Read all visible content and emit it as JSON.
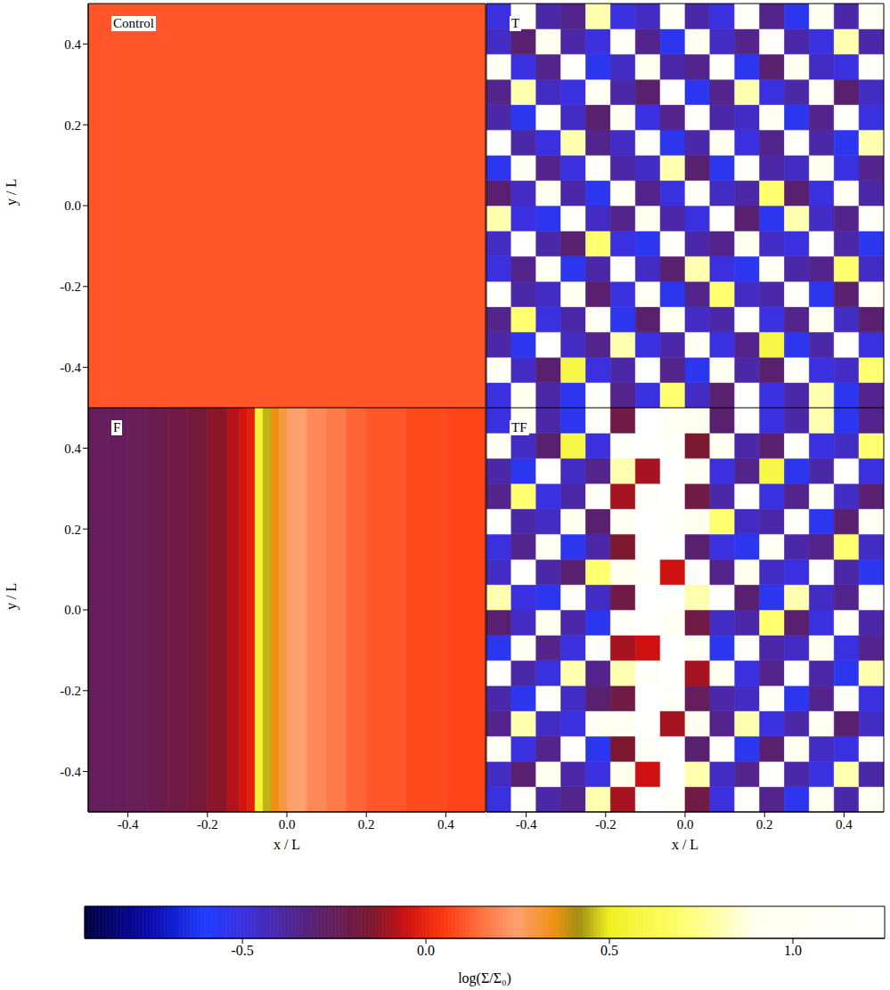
{
  "chart_data": [
    {
      "type": "heatmap",
      "title": "Control",
      "ylabel": "y / L",
      "xlim": [
        -0.5,
        0.5
      ],
      "ylim": [
        -0.5,
        0.5
      ],
      "xticks": [
        -0.4,
        -0.2,
        {
          "value": 0,
          "label": "0.0"
        },
        0.2,
        0.4
      ],
      "yticks": [
        -0.4,
        -0.2,
        {
          "value": 0,
          "label": "0.0"
        },
        0.2,
        0.4
      ],
      "tick_labels": "y",
      "x_edges": [
        -0.5,
        0.5
      ],
      "y_edges": [
        -0.5,
        0.5
      ],
      "cells": [
        [
          0.1
        ]
      ]
    },
    {
      "type": "heatmap",
      "title": "T",
      "xlim": [
        -0.5,
        0.5
      ],
      "ylim": [
        -0.5,
        0.5
      ],
      "xticks": [
        -0.4,
        -0.2,
        {
          "value": 0,
          "label": "0.0"
        },
        0.2,
        0.4
      ],
      "yticks": [
        -0.4,
        -0.2,
        {
          "value": 0,
          "label": "0.0"
        },
        0.2,
        0.4
      ],
      "tick_labels": false,
      "x_edges": [
        -0.5,
        -0.4375,
        -0.375,
        -0.3125,
        -0.25,
        -0.1875,
        -0.125,
        -0.0625,
        0,
        0.0625,
        0.125,
        0.1875,
        0.25,
        0.3125,
        0.375,
        0.4375,
        0.5
      ],
      "y_edges": [
        -0.5,
        -0.4375,
        -0.375,
        -0.3125,
        -0.25,
        -0.1875,
        -0.125,
        -0.0625,
        0,
        0.0625,
        0.125,
        0.1875,
        0.25,
        0.3125,
        0.375,
        0.4375,
        0.5
      ],
      "cells": [
        [
          -0.5,
          0.9,
          -0.4,
          -0.55,
          1.1,
          -0.35,
          -0.5,
          0.7,
          -0.45,
          -0.3,
          1.2,
          -0.5,
          -0.4,
          0.8,
          -0.55,
          -0.35
        ],
        [
          1.0,
          -0.45,
          -0.3,
          0.6,
          -0.5,
          -0.4,
          1.2,
          -0.35,
          -0.55,
          0.9,
          -0.4,
          -0.3,
          1.1,
          -0.5,
          -0.45,
          0.7
        ],
        [
          -0.4,
          -0.55,
          1.2,
          -0.45,
          -0.35,
          0.8,
          -0.5,
          -0.4,
          1.0,
          -0.5,
          -0.35,
          0.6,
          -0.55,
          -0.4,
          1.2,
          -0.5
        ],
        [
          -0.35,
          0.7,
          -0.5,
          -0.4,
          1.1,
          -0.55,
          -0.3,
          0.9,
          -0.45,
          -0.4,
          1.2,
          -0.5,
          -0.35,
          0.9,
          -0.45,
          -0.3
        ],
        [
          1.1,
          -0.4,
          -0.45,
          0.9,
          -0.3,
          -0.5,
          1.0,
          -0.55,
          -0.35,
          0.7,
          -0.45,
          -0.4,
          1.1,
          -0.55,
          -0.3,
          1.0
        ],
        [
          -0.5,
          -0.35,
          1.0,
          -0.55,
          -0.4,
          1.2,
          -0.45,
          -0.3,
          0.8,
          -0.5,
          -0.55,
          1.0,
          -0.4,
          -0.35,
          0.7,
          -0.45
        ],
        [
          -0.45,
          1.2,
          -0.4,
          -0.3,
          0.7,
          -0.5,
          -0.55,
          1.1,
          -0.4,
          -0.35,
          0.9,
          -0.45,
          -0.5,
          1.2,
          -0.4,
          -0.55
        ],
        [
          0.8,
          -0.5,
          -0.55,
          1.1,
          -0.45,
          -0.35,
          0.9,
          -0.4,
          -0.5,
          1.2,
          -0.3,
          -0.55,
          0.8,
          -0.45,
          -0.35,
          1.1
        ],
        [
          -0.3,
          -0.45,
          0.9,
          -0.4,
          -0.55,
          1.0,
          -0.35,
          -0.5,
          1.1,
          -0.45,
          -0.4,
          0.7,
          -0.3,
          -0.5,
          1.0,
          -0.4
        ],
        [
          -0.55,
          1.0,
          -0.35,
          -0.5,
          1.2,
          -0.4,
          -0.45,
          0.8,
          -0.3,
          -0.55,
          1.1,
          -0.4,
          -0.45,
          0.9,
          -0.5,
          -0.35
        ],
        [
          1.2,
          -0.4,
          -0.5,
          0.8,
          -0.35,
          -0.45,
          1.1,
          -0.55,
          -0.4,
          0.9,
          -0.5,
          -0.35,
          1.2,
          -0.4,
          -0.55,
          0.8
        ],
        [
          -0.4,
          -0.55,
          1.1,
          -0.45,
          -0.3,
          0.9,
          -0.5,
          -0.35,
          1.2,
          -0.4,
          -0.45,
          1.0,
          -0.55,
          -0.35,
          1.1,
          -0.5
        ],
        [
          -0.35,
          0.8,
          -0.45,
          -0.5,
          1.0,
          -0.4,
          -0.3,
          1.2,
          -0.55,
          -0.35,
          0.8,
          -0.5,
          -0.4,
          1.0,
          -0.3,
          -0.45
        ],
        [
          1.0,
          -0.5,
          -0.35,
          1.2,
          -0.55,
          -0.45,
          0.9,
          -0.4,
          -0.35,
          1.1,
          -0.55,
          -0.3,
          0.9,
          -0.45,
          -0.5,
          1.2
        ],
        [
          -0.45,
          -0.3,
          0.9,
          -0.4,
          -0.5,
          1.1,
          -0.35,
          -0.55,
          1.0,
          -0.45,
          -0.35,
          1.2,
          -0.4,
          -0.5,
          0.8,
          -0.4
        ],
        [
          -0.5,
          1.1,
          -0.4,
          -0.35,
          0.8,
          -0.5,
          -0.45,
          1.0,
          -0.4,
          -0.5,
          1.1,
          -0.35,
          -0.55,
          0.9,
          -0.4,
          1.0
        ]
      ]
    },
    {
      "type": "heatmap",
      "title": "F",
      "xlabel": "x / L",
      "ylabel": "y / L",
      "xlim": [
        -0.5,
        0.5
      ],
      "ylim": [
        -0.5,
        0.5
      ],
      "xticks": [
        -0.4,
        -0.2,
        {
          "value": 0,
          "label": "0.0"
        },
        0.2,
        0.4
      ],
      "yticks": [
        -0.4,
        -0.2,
        {
          "value": 0,
          "label": "0.0"
        },
        0.2,
        0.4
      ],
      "tick_labels": true,
      "x_edges": [
        -0.5,
        -0.45,
        -0.4,
        -0.35,
        -0.3,
        -0.25,
        -0.2,
        -0.15,
        -0.12,
        -0.1,
        -0.08,
        -0.06,
        -0.04,
        -0.02,
        0,
        0.05,
        0.1,
        0.15,
        0.2,
        0.3,
        0.4,
        0.5
      ],
      "y_edges": [
        -0.5,
        0.5
      ],
      "cells": [
        [
          -0.25,
          -0.25,
          -0.24,
          -0.22,
          -0.2,
          -0.17,
          -0.13,
          -0.08,
          -0.04,
          -0.01,
          0.55,
          0.45,
          0.35,
          0.3,
          0.25,
          0.2,
          0.17,
          0.13,
          0.1,
          0.08,
          0.07
        ]
      ]
    },
    {
      "type": "heatmap",
      "title": "TF",
      "xlabel": "x / L",
      "xlim": [
        -0.5,
        0.5
      ],
      "ylim": [
        -0.5,
        0.5
      ],
      "xticks": [
        -0.4,
        -0.2,
        {
          "value": 0,
          "label": "0.0"
        },
        0.2,
        0.4
      ],
      "yticks": [
        -0.4,
        -0.2,
        {
          "value": 0,
          "label": "0.0"
        },
        0.2,
        0.4
      ],
      "tick_labels": "x",
      "x_edges": [
        -0.5,
        -0.4375,
        -0.375,
        -0.3125,
        -0.25,
        -0.1875,
        -0.125,
        -0.0625,
        0,
        0.0625,
        0.125,
        0.1875,
        0.25,
        0.3125,
        0.375,
        0.4375,
        0.5
      ],
      "y_edges": [
        -0.5,
        -0.4375,
        -0.375,
        -0.3125,
        -0.25,
        -0.1875,
        -0.125,
        -0.0625,
        0,
        0.0625,
        0.125,
        0.1875,
        0.25,
        0.3125,
        0.375,
        0.4375,
        0.5
      ],
      "cells": [
        [
          -0.5,
          1.1,
          -0.4,
          -0.35,
          0.8,
          -0.1,
          1.2,
          1.1,
          -0.2,
          -0.5,
          1.1,
          -0.35,
          -0.55,
          0.9,
          -0.4,
          1.0
        ],
        [
          -0.45,
          -0.3,
          0.9,
          -0.4,
          -0.5,
          0.9,
          -0.05,
          1.2,
          0.8,
          -0.45,
          -0.35,
          1.2,
          -0.4,
          -0.5,
          0.8,
          -0.4
        ],
        [
          1.0,
          -0.5,
          -0.35,
          1.2,
          -0.55,
          -0.15,
          1.1,
          1.3,
          -0.3,
          1.1,
          -0.55,
          -0.3,
          0.9,
          -0.45,
          -0.5,
          1.2
        ],
        [
          -0.35,
          0.8,
          -0.45,
          -0.5,
          1.0,
          1.0,
          1.2,
          -0.1,
          0.9,
          -0.35,
          0.8,
          -0.5,
          -0.4,
          1.0,
          -0.3,
          -0.45
        ],
        [
          -0.4,
          -0.55,
          1.1,
          -0.45,
          -0.3,
          -0.2,
          1.3,
          1.1,
          -0.25,
          -0.4,
          -0.45,
          1.0,
          -0.55,
          -0.35,
          1.1,
          -0.5
        ],
        [
          1.2,
          -0.4,
          -0.5,
          0.8,
          -0.35,
          0.8,
          1.1,
          1.2,
          -0.1,
          0.9,
          -0.5,
          -0.35,
          1.2,
          -0.4,
          -0.55,
          0.8
        ],
        [
          -0.55,
          1.0,
          -0.35,
          -0.5,
          1.2,
          -0.1,
          -0.05,
          1.3,
          1.0,
          -0.55,
          1.1,
          -0.4,
          -0.45,
          0.9,
          -0.5,
          -0.35
        ],
        [
          -0.3,
          -0.45,
          0.9,
          -0.4,
          -0.55,
          1.1,
          1.2,
          1.0,
          -0.2,
          -0.45,
          -0.4,
          0.7,
          -0.3,
          -0.5,
          1.0,
          -0.4
        ],
        [
          0.8,
          -0.5,
          -0.55,
          1.1,
          -0.45,
          -0.2,
          1.3,
          1.2,
          0.8,
          1.2,
          -0.3,
          -0.55,
          0.8,
          -0.45,
          -0.35,
          1.1
        ],
        [
          -0.45,
          1.2,
          -0.4,
          -0.3,
          0.7,
          0.9,
          1.1,
          -0.05,
          1.1,
          -0.35,
          0.9,
          -0.45,
          -0.5,
          1.2,
          -0.4,
          -0.55
        ],
        [
          -0.5,
          -0.35,
          1.0,
          -0.55,
          -0.4,
          -0.15,
          1.2,
          1.3,
          -0.3,
          -0.5,
          -0.55,
          1.0,
          -0.4,
          -0.35,
          0.7,
          -0.45
        ],
        [
          1.1,
          -0.4,
          -0.45,
          0.9,
          -0.3,
          1.0,
          1.3,
          1.1,
          0.9,
          0.7,
          -0.45,
          -0.4,
          1.1,
          -0.55,
          -0.3,
          1.0
        ],
        [
          -0.35,
          0.7,
          -0.5,
          -0.4,
          1.1,
          -0.1,
          1.1,
          1.2,
          -0.2,
          -0.4,
          1.2,
          -0.5,
          -0.35,
          0.9,
          -0.45,
          -0.3
        ],
        [
          -0.4,
          -0.55,
          1.2,
          -0.45,
          -0.35,
          0.8,
          -0.1,
          1.3,
          1.0,
          -0.5,
          -0.35,
          0.6,
          -0.55,
          -0.4,
          1.2,
          -0.5
        ],
        [
          1.0,
          -0.45,
          -0.3,
          0.6,
          -0.5,
          1.1,
          1.2,
          1.1,
          -0.15,
          0.9,
          -0.4,
          -0.3,
          1.1,
          -0.5,
          -0.45,
          0.7
        ],
        [
          -0.5,
          0.9,
          -0.4,
          -0.55,
          1.1,
          -0.2,
          1.3,
          1.0,
          0.9,
          -0.3,
          1.2,
          -0.5,
          -0.4,
          0.8,
          -0.55,
          -0.35
        ]
      ]
    },
    {
      "type": "colorbar",
      "xlabel": "log(Σ/Σ₀)",
      "xlim": [
        -0.93,
        1.25
      ],
      "xticks": [
        -0.5,
        {
          "value": 0,
          "label": "0.0"
        },
        0.5,
        {
          "value": 1,
          "label": "1.0"
        }
      ]
    }
  ]
}
